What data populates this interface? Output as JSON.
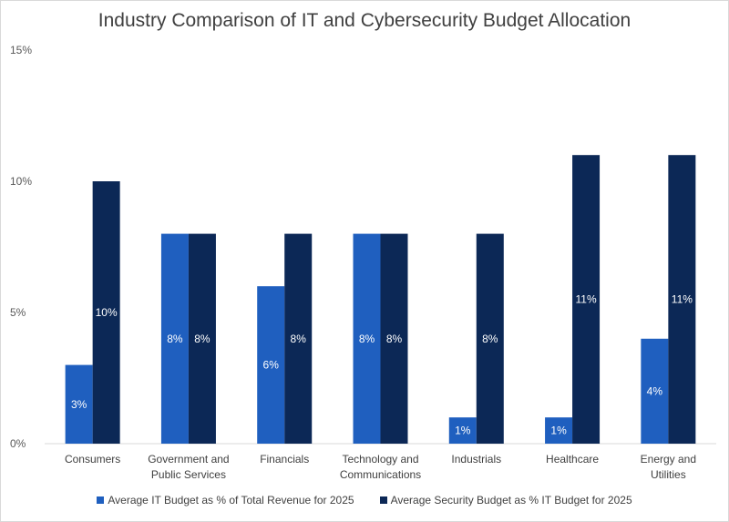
{
  "chart_data": {
    "type": "bar",
    "title": "Industry Comparison of IT and Cybersecurity Budget Allocation",
    "categories": [
      [
        "Consumers"
      ],
      [
        "Government and",
        "Public Services"
      ],
      [
        "Financials"
      ],
      [
        "Technology and",
        "Communications"
      ],
      [
        "Industrials"
      ],
      [
        "Healthcare"
      ],
      [
        "Energy and",
        "Utilities"
      ]
    ],
    "series": [
      {
        "name": "Average IT Budget as % of Total Revenue for 2025",
        "values": [
          3,
          8,
          6,
          8,
          1,
          1,
          4
        ],
        "labels": [
          "3%",
          "8%",
          "6%",
          "8%",
          "1%",
          "1%",
          "4%"
        ],
        "color": "#1f5fbf"
      },
      {
        "name": "Average Security Budget as % IT Budget for 2025",
        "values": [
          10,
          8,
          8,
          8,
          8,
          11,
          11
        ],
        "labels": [
          "10%",
          "8%",
          "8%",
          "8%",
          "8%",
          "11%",
          "11%"
        ],
        "color": "#0c2856"
      }
    ],
    "ylim": [
      0,
      15
    ],
    "yticks": [
      0,
      5,
      10,
      15
    ],
    "ytick_labels": [
      "0%",
      "5%",
      "10%",
      "15%"
    ],
    "grid": false,
    "legend_position": "bottom"
  }
}
